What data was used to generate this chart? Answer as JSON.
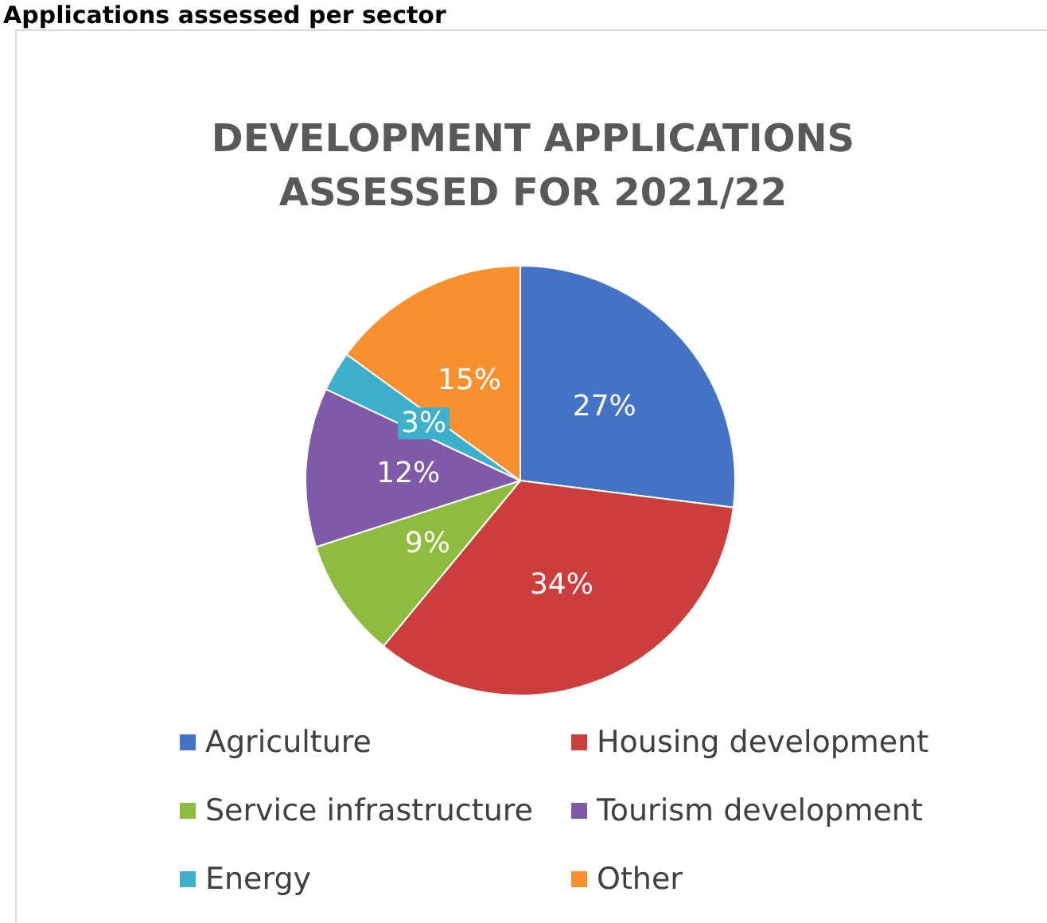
{
  "chart_data": {
    "type": "pie",
    "title": "DEVELOPMENT APPLICATIONS\nASSESSED FOR 2021/22",
    "annotations": [
      "Applications assessed per sector"
    ],
    "categories": [
      "Agriculture",
      "Housing development",
      "Service infrastructure",
      "Tourism development",
      "Energy",
      "Other"
    ],
    "values": [
      27,
      34,
      9,
      12,
      3,
      15
    ],
    "value_labels": [
      "27%",
      "34%",
      "9%",
      "12%",
      "3%",
      "15%"
    ],
    "colors": [
      "#4472c4",
      "#cc3e3b",
      "#8fbc3f",
      "#7e5aa8",
      "#3fb0cc",
      "#f7902f"
    ],
    "legend": "bottom"
  }
}
